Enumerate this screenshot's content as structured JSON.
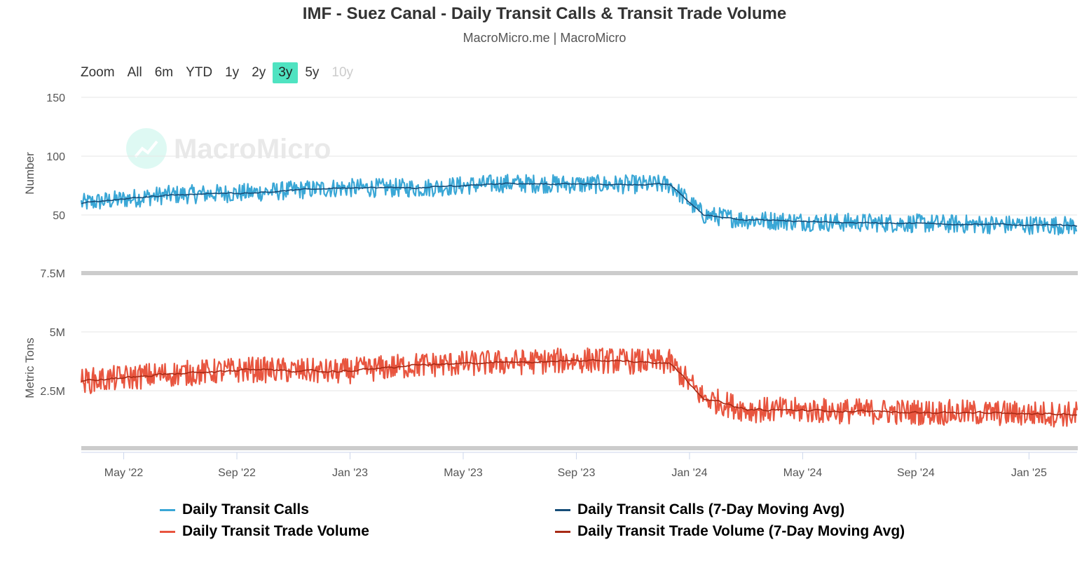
{
  "title": "IMF - Suez Canal - Daily Transit Calls & Transit Trade Volume",
  "subtitle": "MacroMicro.me | MacroMicro",
  "watermark": "MacroMicro",
  "zoom": {
    "label": "Zoom",
    "buttons": [
      "All",
      "6m",
      "YTD",
      "1y",
      "2y",
      "3y",
      "5y",
      "10y"
    ],
    "active": "3y",
    "disabled": [
      "10y"
    ]
  },
  "colors": {
    "calls": "#3aa7d6",
    "calls_ma": "#164d78",
    "volume": "#e8553f",
    "volume_ma": "#a82a15",
    "grid": "#e6e6e6",
    "active_zoom": "#4fe3c1"
  },
  "legend": [
    {
      "label": "Daily Transit Calls",
      "color": "#3aa7d6"
    },
    {
      "label": "Daily Transit Calls (7-Day Moving Avg)",
      "color": "#164d78"
    },
    {
      "label": "Daily Transit Trade Volume",
      "color": "#e8553f"
    },
    {
      "label": "Daily Transit Trade Volume (7-Day Moving Avg)",
      "color": "#a82a15"
    }
  ],
  "chart_data": {
    "type": "line",
    "x_tick_labels": [
      "May '22",
      "Sep '22",
      "Jan '23",
      "May '23",
      "Sep '23",
      "Jan '24",
      "May '24",
      "Sep '24",
      "Jan '25"
    ],
    "x_range_months": [
      0,
      35.2
    ],
    "x_tick_positions_months": [
      1.5,
      5.5,
      9.5,
      13.5,
      17.5,
      21.5,
      25.5,
      29.5,
      33.5
    ],
    "panels": [
      {
        "id": "calls",
        "ylabel": "Number",
        "ylim": [
          0,
          150
        ],
        "y_ticks": [
          50,
          100,
          150
        ],
        "y_tick_labels": [
          "50",
          "100",
          "150"
        ],
        "series": [
          {
            "name": "Daily Transit Calls",
            "anchors_month": [
              0,
              3,
              6,
              9,
              12,
              15,
              18,
              20.8,
              22,
              23.5,
              26,
              29,
              32,
              35.2
            ],
            "anchors_value": [
              60,
              67,
              69,
              73,
              73,
              77,
              76,
              76,
              50,
              46,
              44,
              43,
              42,
              41
            ],
            "noise": 8
          },
          {
            "name": "Daily Transit Calls (7-Day Moving Avg)",
            "anchors_month": [
              0,
              3,
              6,
              9,
              12,
              15,
              18,
              20.8,
              22,
              23.5,
              26,
              29,
              32,
              35.2
            ],
            "anchors_value": [
              60,
              67,
              69,
              73,
              73,
              77,
              76,
              76,
              50,
              46,
              44,
              43,
              42,
              41
            ],
            "noise": 2
          }
        ]
      },
      {
        "id": "volume",
        "ylabel": "Metric Tons",
        "ylim": [
          0,
          7500000
        ],
        "y_ticks": [
          2500000,
          5000000,
          7500000
        ],
        "y_tick_labels": [
          "2.5M",
          "5M",
          "7.5M"
        ],
        "series": [
          {
            "name": "Daily Transit Trade Volume",
            "anchors_month": [
              0,
              3,
              6,
              9,
              12,
              15,
              18,
              20.8,
              22,
              23.5,
              26,
              29,
              32,
              35.2
            ],
            "anchors_value": [
              2900000,
              3200000,
              3400000,
              3300000,
              3600000,
              3700000,
              3800000,
              3700000,
              2200000,
              1700000,
              1650000,
              1600000,
              1550000,
              1500000
            ],
            "noise": 550000
          },
          {
            "name": "Daily Transit Trade Volume (7-Day Moving Avg)",
            "anchors_month": [
              0,
              3,
              6,
              9,
              12,
              15,
              18,
              20.8,
              22,
              23.5,
              26,
              29,
              32,
              35.2
            ],
            "anchors_value": [
              2900000,
              3200000,
              3400000,
              3300000,
              3600000,
              3700000,
              3800000,
              3700000,
              2200000,
              1700000,
              1650000,
              1600000,
              1550000,
              1500000
            ],
            "noise": 150000
          }
        ]
      }
    ]
  }
}
